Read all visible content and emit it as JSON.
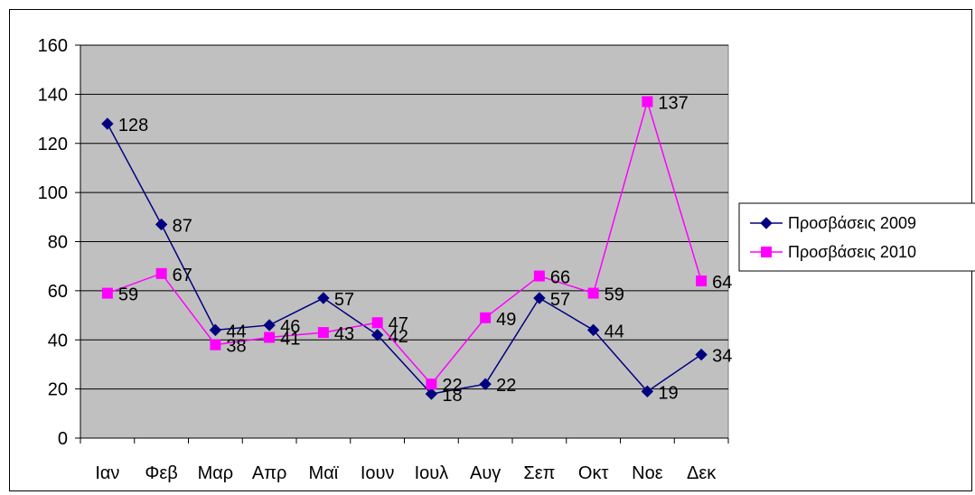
{
  "chart_data": {
    "type": "line",
    "title": "",
    "xlabel": "",
    "ylabel": "",
    "categories": [
      "Ιαν",
      "Φεβ",
      "Μαρ",
      "Απρ",
      "Μαϊ",
      "Ιουν",
      "Ιουλ",
      "Αυγ",
      "Σεπ",
      "Οκτ",
      "Νοε",
      "Δεκ"
    ],
    "ylim": [
      0,
      160
    ],
    "yticks": [
      0,
      20,
      40,
      60,
      80,
      100,
      120,
      140,
      160
    ],
    "grid": true,
    "legend_position": "right",
    "plot_background": "#c0c0c0",
    "series": [
      {
        "name": "Προσβάσεις 2009",
        "color": "#000080",
        "marker": "diamond",
        "values": [
          128,
          87,
          44,
          46,
          57,
          42,
          18,
          22,
          57,
          44,
          19,
          34
        ]
      },
      {
        "name": "Προσβάσεις 2010",
        "color": "#ff00ff",
        "marker": "square",
        "values": [
          59,
          67,
          38,
          41,
          43,
          47,
          22,
          49,
          66,
          59,
          137,
          64
        ]
      }
    ]
  }
}
